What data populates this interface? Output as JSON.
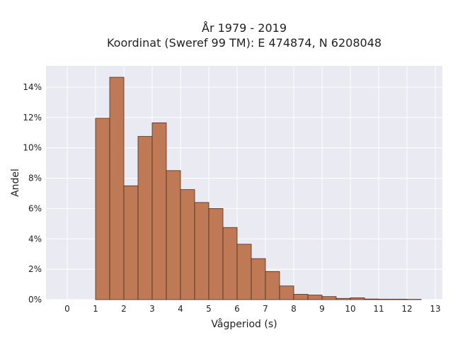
{
  "chart_data": {
    "type": "bar",
    "title_lines": [
      "År 1979 - 2019",
      "Koordinat (Sweref 99 TM): E 474874, N 6208048"
    ],
    "xlabel": "Vågperiod (s)",
    "ylabel": "Andel",
    "xlim": [
      -0.75,
      13.25
    ],
    "ylim": [
      0,
      0.154
    ],
    "bin_width": 0.5,
    "x_ticks": [
      0,
      1,
      2,
      3,
      4,
      5,
      6,
      7,
      8,
      9,
      10,
      11,
      12,
      13
    ],
    "y_ticks": [
      0,
      0.02,
      0.04,
      0.06,
      0.08,
      0.1,
      0.12,
      0.14
    ],
    "y_tick_labels": [
      "0%",
      "2%",
      "4%",
      "6%",
      "8%",
      "10%",
      "12%",
      "14%"
    ],
    "grid": true,
    "colors": {
      "bar_fill": "#bf7a55",
      "bar_edge": "#4a2e22",
      "plot_bg": "#eaeaf2",
      "grid": "#ffffff"
    },
    "bins": [
      {
        "x": 0.0,
        "value": 0.0
      },
      {
        "x": 1.0,
        "value": 0.1195
      },
      {
        "x": 1.5,
        "value": 0.1465
      },
      {
        "x": 2.0,
        "value": 0.075
      },
      {
        "x": 2.5,
        "value": 0.1075
      },
      {
        "x": 3.0,
        "value": 0.1165
      },
      {
        "x": 3.5,
        "value": 0.085
      },
      {
        "x": 4.0,
        "value": 0.0725
      },
      {
        "x": 4.5,
        "value": 0.064
      },
      {
        "x": 5.0,
        "value": 0.06
      },
      {
        "x": 5.5,
        "value": 0.0475
      },
      {
        "x": 6.0,
        "value": 0.0365
      },
      {
        "x": 6.5,
        "value": 0.027
      },
      {
        "x": 7.0,
        "value": 0.0185
      },
      {
        "x": 7.5,
        "value": 0.009
      },
      {
        "x": 8.0,
        "value": 0.0035
      },
      {
        "x": 8.5,
        "value": 0.003
      },
      {
        "x": 9.0,
        "value": 0.002
      },
      {
        "x": 9.5,
        "value": 0.0008
      },
      {
        "x": 10.0,
        "value": 0.0012
      },
      {
        "x": 10.5,
        "value": 0.0004
      },
      {
        "x": 11.0,
        "value": 0.0003
      },
      {
        "x": 11.5,
        "value": 0.0003
      },
      {
        "x": 12.0,
        "value": 0.0002
      }
    ]
  }
}
